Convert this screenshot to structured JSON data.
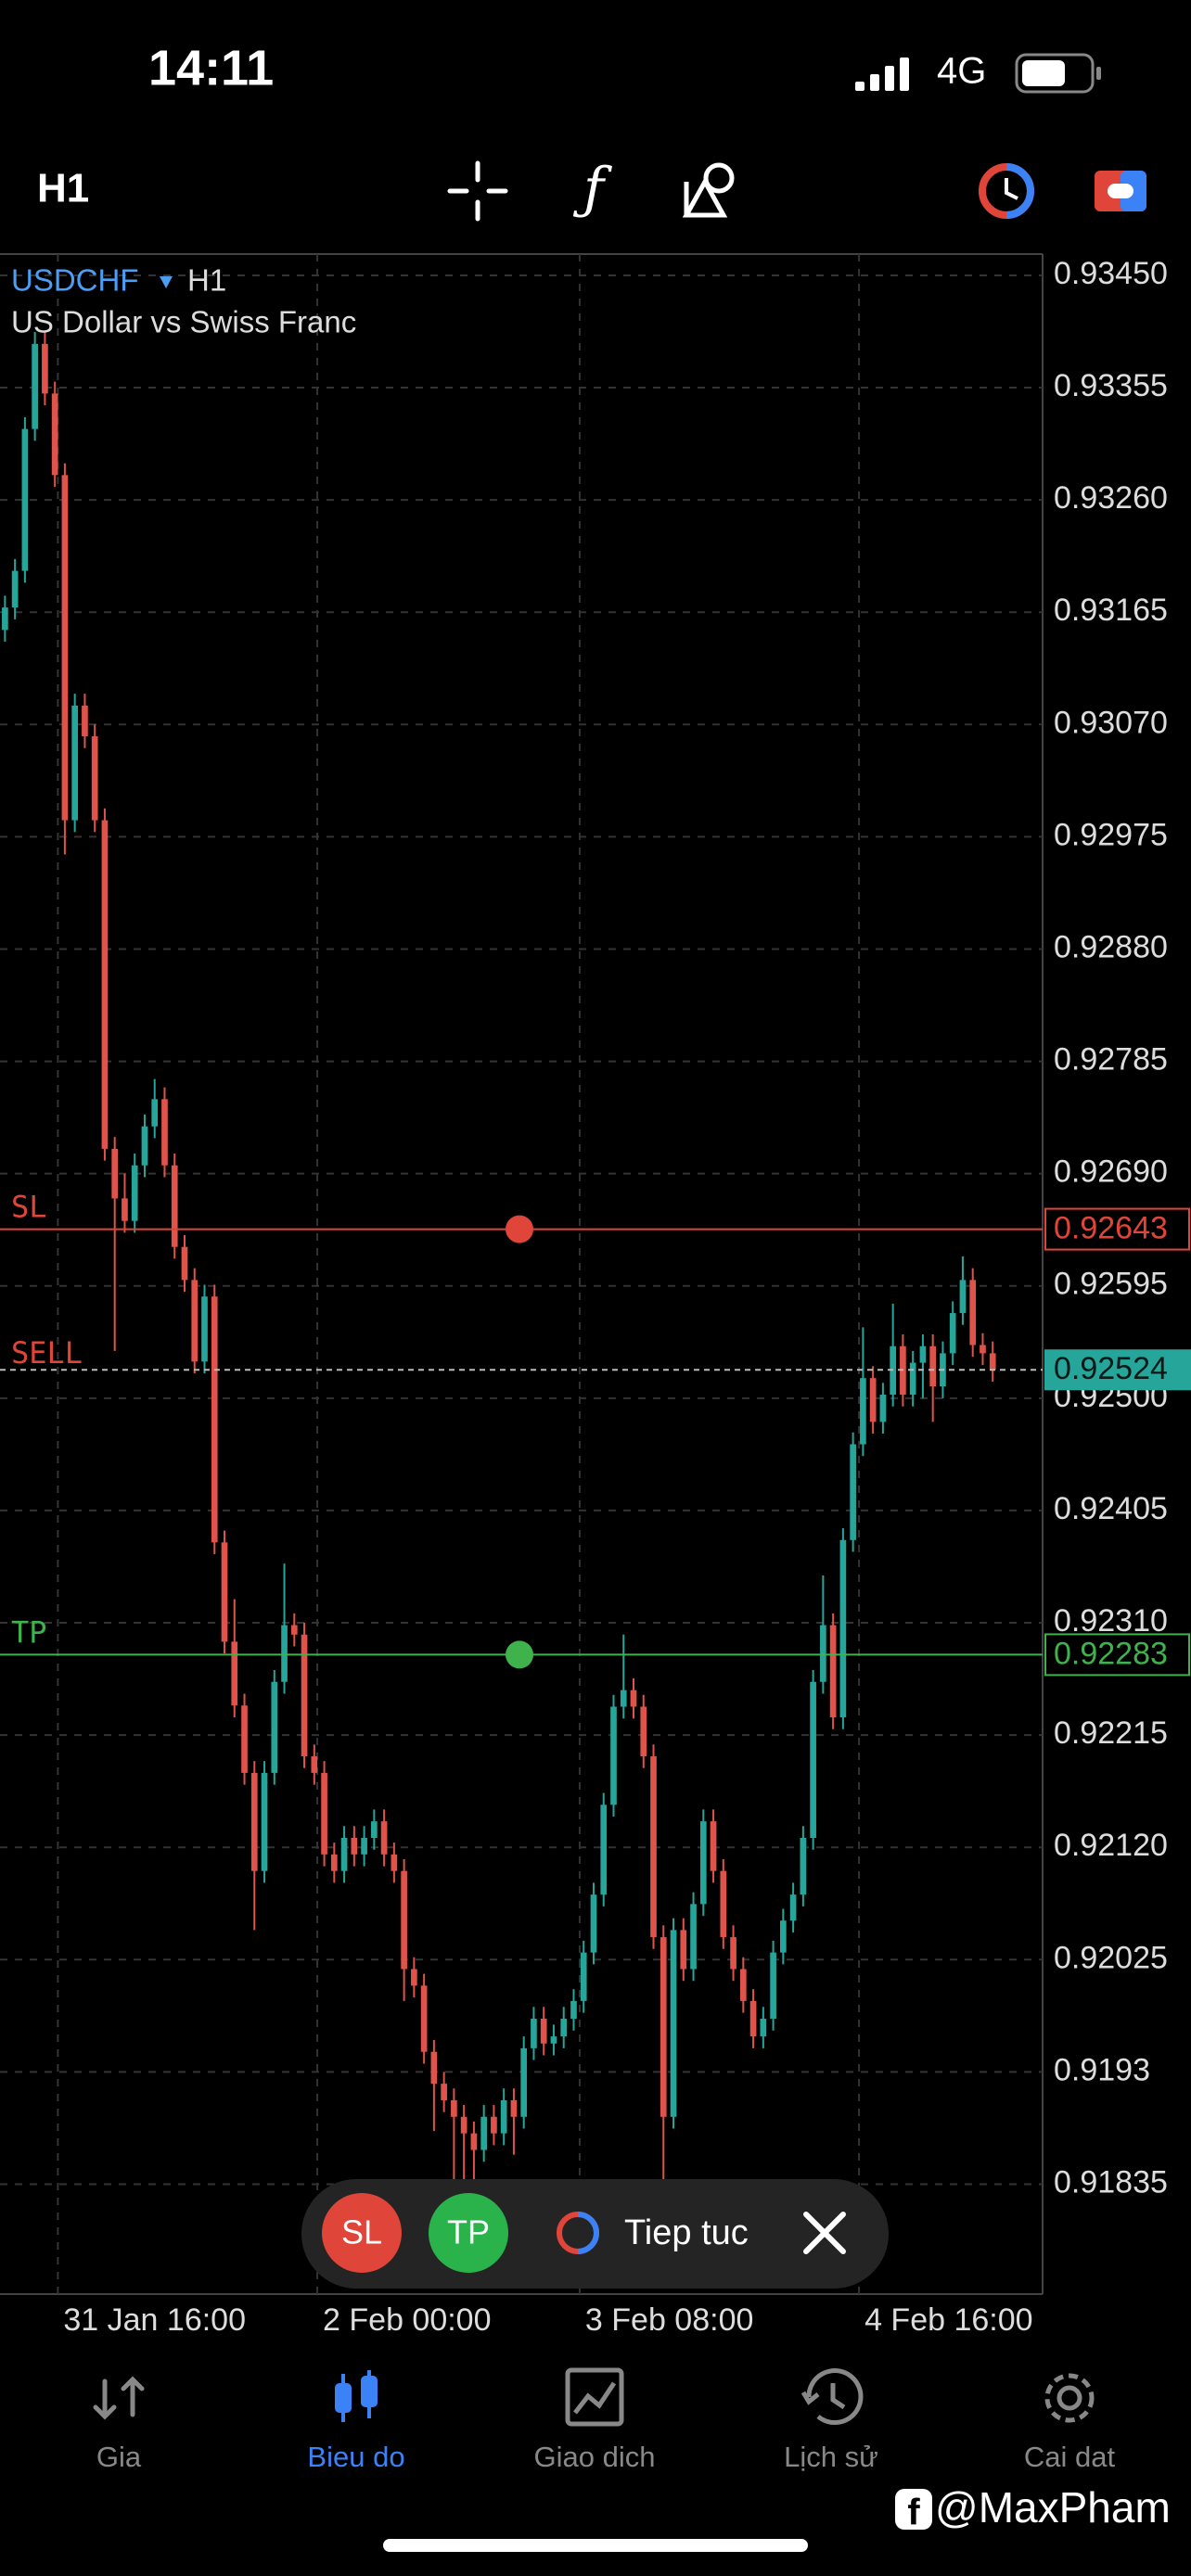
{
  "status_bar": {
    "time": "14:11",
    "network": "4G"
  },
  "toolbar": {
    "timeframe": "H1"
  },
  "chart_data": {
    "type": "candlestick",
    "symbol": "USDCHF",
    "timeframe": "H1",
    "subtitle": "US Dollar vs Swiss Franc",
    "up_color": "#26a69a",
    "down_color": "#e0534a",
    "candles": [
      [
        0.9315,
        0.93179,
        0.9314,
        0.93169
      ],
      [
        0.93169,
        0.9321,
        0.93159,
        0.932
      ],
      [
        0.932,
        0.9333,
        0.9319,
        0.9332
      ],
      [
        0.9332,
        0.93402,
        0.9331,
        0.93392
      ],
      [
        0.93392,
        0.93402,
        0.9334,
        0.9335
      ],
      [
        0.9335,
        0.9336,
        0.93271,
        0.93281
      ],
      [
        0.93281,
        0.93291,
        0.9296,
        0.92989
      ],
      [
        0.92989,
        0.93096,
        0.92979,
        0.93086
      ],
      [
        0.93086,
        0.93096,
        0.9305,
        0.9306
      ],
      [
        0.9306,
        0.9307,
        0.92979,
        0.92989
      ],
      [
        0.92989,
        0.92999,
        0.92701,
        0.92711
      ],
      [
        0.92711,
        0.92721,
        0.9254,
        0.92669
      ],
      [
        0.92669,
        0.9269,
        0.9264,
        0.9265
      ],
      [
        0.9265,
        0.92707,
        0.9264,
        0.92697
      ],
      [
        0.92697,
        0.9274,
        0.92687,
        0.9273
      ],
      [
        0.9273,
        0.9277,
        0.9272,
        0.92753
      ],
      [
        0.92753,
        0.92763,
        0.92687,
        0.92697
      ],
      [
        0.92697,
        0.92707,
        0.92618,
        0.92628
      ],
      [
        0.92628,
        0.92638,
        0.9259,
        0.926
      ],
      [
        0.926,
        0.9261,
        0.92521,
        0.92531
      ],
      [
        0.92531,
        0.92596,
        0.92521,
        0.92586
      ],
      [
        0.92586,
        0.92596,
        0.92368,
        0.92378
      ],
      [
        0.92378,
        0.92388,
        0.92284,
        0.92294
      ],
      [
        0.92294,
        0.9233,
        0.9223,
        0.9224
      ],
      [
        0.9224,
        0.9225,
        0.92173,
        0.92183
      ],
      [
        0.92183,
        0.92193,
        0.9205,
        0.921
      ],
      [
        0.921,
        0.92193,
        0.9209,
        0.92183
      ],
      [
        0.92183,
        0.9227,
        0.92173,
        0.9226
      ],
      [
        0.9226,
        0.9236,
        0.9225,
        0.92308
      ],
      [
        0.92308,
        0.92318,
        0.9229,
        0.923
      ],
      [
        0.923,
        0.9231,
        0.92187,
        0.92197
      ],
      [
        0.92197,
        0.92207,
        0.92173,
        0.92183
      ],
      [
        0.92183,
        0.92193,
        0.92104,
        0.92114
      ],
      [
        0.92114,
        0.92124,
        0.9209,
        0.921
      ],
      [
        0.921,
        0.92138,
        0.9209,
        0.92128
      ],
      [
        0.92128,
        0.92138,
        0.92104,
        0.92114
      ],
      [
        0.92114,
        0.92138,
        0.92104,
        0.92128
      ],
      [
        0.92128,
        0.92152,
        0.92118,
        0.92142
      ],
      [
        0.92142,
        0.92152,
        0.92104,
        0.92114
      ],
      [
        0.92114,
        0.92124,
        0.9209,
        0.921
      ],
      [
        0.921,
        0.9211,
        0.9199,
        0.92017
      ],
      [
        0.92017,
        0.92027,
        0.91993,
        0.92003
      ],
      [
        0.92003,
        0.92013,
        0.91937,
        0.91947
      ],
      [
        0.91947,
        0.91957,
        0.9188,
        0.9192
      ],
      [
        0.9192,
        0.9193,
        0.91896,
        0.91906
      ],
      [
        0.91906,
        0.91916,
        0.9182,
        0.91892
      ],
      [
        0.91892,
        0.91902,
        0.9182,
        0.91878
      ],
      [
        0.91878,
        0.91888,
        0.9183,
        0.91864
      ],
      [
        0.91864,
        0.91902,
        0.91854,
        0.91892
      ],
      [
        0.91892,
        0.91902,
        0.91868,
        0.91878
      ],
      [
        0.91878,
        0.91916,
        0.91868,
        0.91906
      ],
      [
        0.91906,
        0.91916,
        0.9186,
        0.91892
      ],
      [
        0.91892,
        0.9196,
        0.91882,
        0.9195
      ],
      [
        0.9195,
        0.91985,
        0.9194,
        0.91975
      ],
      [
        0.91975,
        0.91985,
        0.91944,
        0.91954
      ],
      [
        0.91954,
        0.9197,
        0.91944,
        0.9196
      ],
      [
        0.9196,
        0.91985,
        0.9195,
        0.91975
      ],
      [
        0.91975,
        0.92,
        0.91965,
        0.9199
      ],
      [
        0.9199,
        0.92041,
        0.9198,
        0.92031
      ],
      [
        0.92031,
        0.9209,
        0.92021,
        0.9208
      ],
      [
        0.9208,
        0.92166,
        0.9207,
        0.92156
      ],
      [
        0.92156,
        0.92249,
        0.92146,
        0.92239
      ],
      [
        0.92239,
        0.923,
        0.92229,
        0.92253
      ],
      [
        0.92253,
        0.92263,
        0.92229,
        0.92239
      ],
      [
        0.92239,
        0.92249,
        0.92187,
        0.92197
      ],
      [
        0.92197,
        0.92207,
        0.92034,
        0.92044
      ],
      [
        0.92044,
        0.92054,
        0.9183,
        0.91892
      ],
      [
        0.91892,
        0.9206,
        0.91882,
        0.9205
      ],
      [
        0.9205,
        0.9206,
        0.92007,
        0.92017
      ],
      [
        0.92017,
        0.92082,
        0.92007,
        0.92072
      ],
      [
        0.92072,
        0.92152,
        0.92062,
        0.92142
      ],
      [
        0.92142,
        0.92152,
        0.9209,
        0.921
      ],
      [
        0.921,
        0.9211,
        0.92034,
        0.92044
      ],
      [
        0.92044,
        0.92054,
        0.92007,
        0.92017
      ],
      [
        0.92017,
        0.92027,
        0.9198,
        0.9199
      ],
      [
        0.9199,
        0.92,
        0.9195,
        0.9196
      ],
      [
        0.9196,
        0.91985,
        0.9195,
        0.91975
      ],
      [
        0.91975,
        0.92041,
        0.91965,
        0.92031
      ],
      [
        0.92031,
        0.92068,
        0.92021,
        0.92058
      ],
      [
        0.92058,
        0.9209,
        0.92048,
        0.9208
      ],
      [
        0.9208,
        0.92138,
        0.9207,
        0.92128
      ],
      [
        0.92128,
        0.9227,
        0.92118,
        0.9226
      ],
      [
        0.9226,
        0.9235,
        0.9225,
        0.92308
      ],
      [
        0.92308,
        0.92318,
        0.9222,
        0.9223
      ],
      [
        0.9223,
        0.9239,
        0.9222,
        0.9238
      ],
      [
        0.9238,
        0.92471,
        0.9237,
        0.92461
      ],
      [
        0.92461,
        0.9256,
        0.92451,
        0.92517
      ],
      [
        0.92517,
        0.92527,
        0.9247,
        0.9248
      ],
      [
        0.9248,
        0.92513,
        0.9247,
        0.92503
      ],
      [
        0.92503,
        0.9258,
        0.92493,
        0.92544
      ],
      [
        0.92544,
        0.92554,
        0.92493,
        0.92503
      ],
      [
        0.92503,
        0.9254,
        0.92493,
        0.9253
      ],
      [
        0.9253,
        0.92554,
        0.925,
        0.92544
      ],
      [
        0.92544,
        0.92554,
        0.9248,
        0.9251
      ],
      [
        0.9251,
        0.92548,
        0.925,
        0.92538
      ],
      [
        0.92538,
        0.92582,
        0.92528,
        0.92572
      ],
      [
        0.92572,
        0.9262,
        0.92562,
        0.926
      ],
      [
        0.926,
        0.9261,
        0.92535,
        0.92545
      ],
      [
        0.92545,
        0.92555,
        0.92528,
        0.92538
      ],
      [
        0.92538,
        0.92548,
        0.92514,
        0.92524
      ]
    ],
    "xlim": [
      -0.5,
      104
    ],
    "xticks": [
      {
        "value": 5.3,
        "label": "31 Jan 16:00"
      },
      {
        "value": 31.3,
        "label": "2 Feb 00:00"
      },
      {
        "value": 57.6,
        "label": "3 Feb 08:00"
      },
      {
        "value": 85.6,
        "label": "4 Feb 16:00"
      }
    ],
    "ylim": [
      0.91742,
      0.93468
    ],
    "yticks": [
      {
        "value": 0.9345,
        "label": "0.93450"
      },
      0.93355,
      {
        "value": 0.9326,
        "label": "0.93260"
      },
      0.93165,
      {
        "value": 0.9307,
        "label": "0.93070"
      },
      0.92975,
      {
        "value": 0.9288,
        "label": "0.92880"
      },
      0.92785,
      {
        "value": 0.9269,
        "label": "0.92690"
      },
      0.92595,
      {
        "value": 0.925,
        "label": "0.92500"
      },
      0.92405,
      {
        "value": 0.9231,
        "label": "0.92310"
      },
      0.92215,
      {
        "value": 0.9212,
        "label": "0.92120"
      },
      0.92025,
      0.9193,
      0.91835
    ],
    "grid": true,
    "levels": [
      {
        "name": "SL",
        "value": 0.92643,
        "color": "#e0453a"
      },
      {
        "name": "TP",
        "value": 0.92283,
        "color": "#3fb24b"
      }
    ],
    "position": {
      "name": "SELL",
      "value": 0.92524,
      "color": "#26a69a",
      "label_color": "#e0453a"
    }
  },
  "order_bar": {
    "sl": "SL",
    "tp": "TP",
    "action": "Tiep tuc"
  },
  "nav": [
    {
      "label": "Gia",
      "active": false
    },
    {
      "label": "Bieu do",
      "active": true
    },
    {
      "label": "Giao dich",
      "active": false
    },
    {
      "label": "Lịch sử",
      "active": false
    },
    {
      "label": "Cai dat",
      "active": false
    }
  ],
  "watermark": "@MaxPham"
}
